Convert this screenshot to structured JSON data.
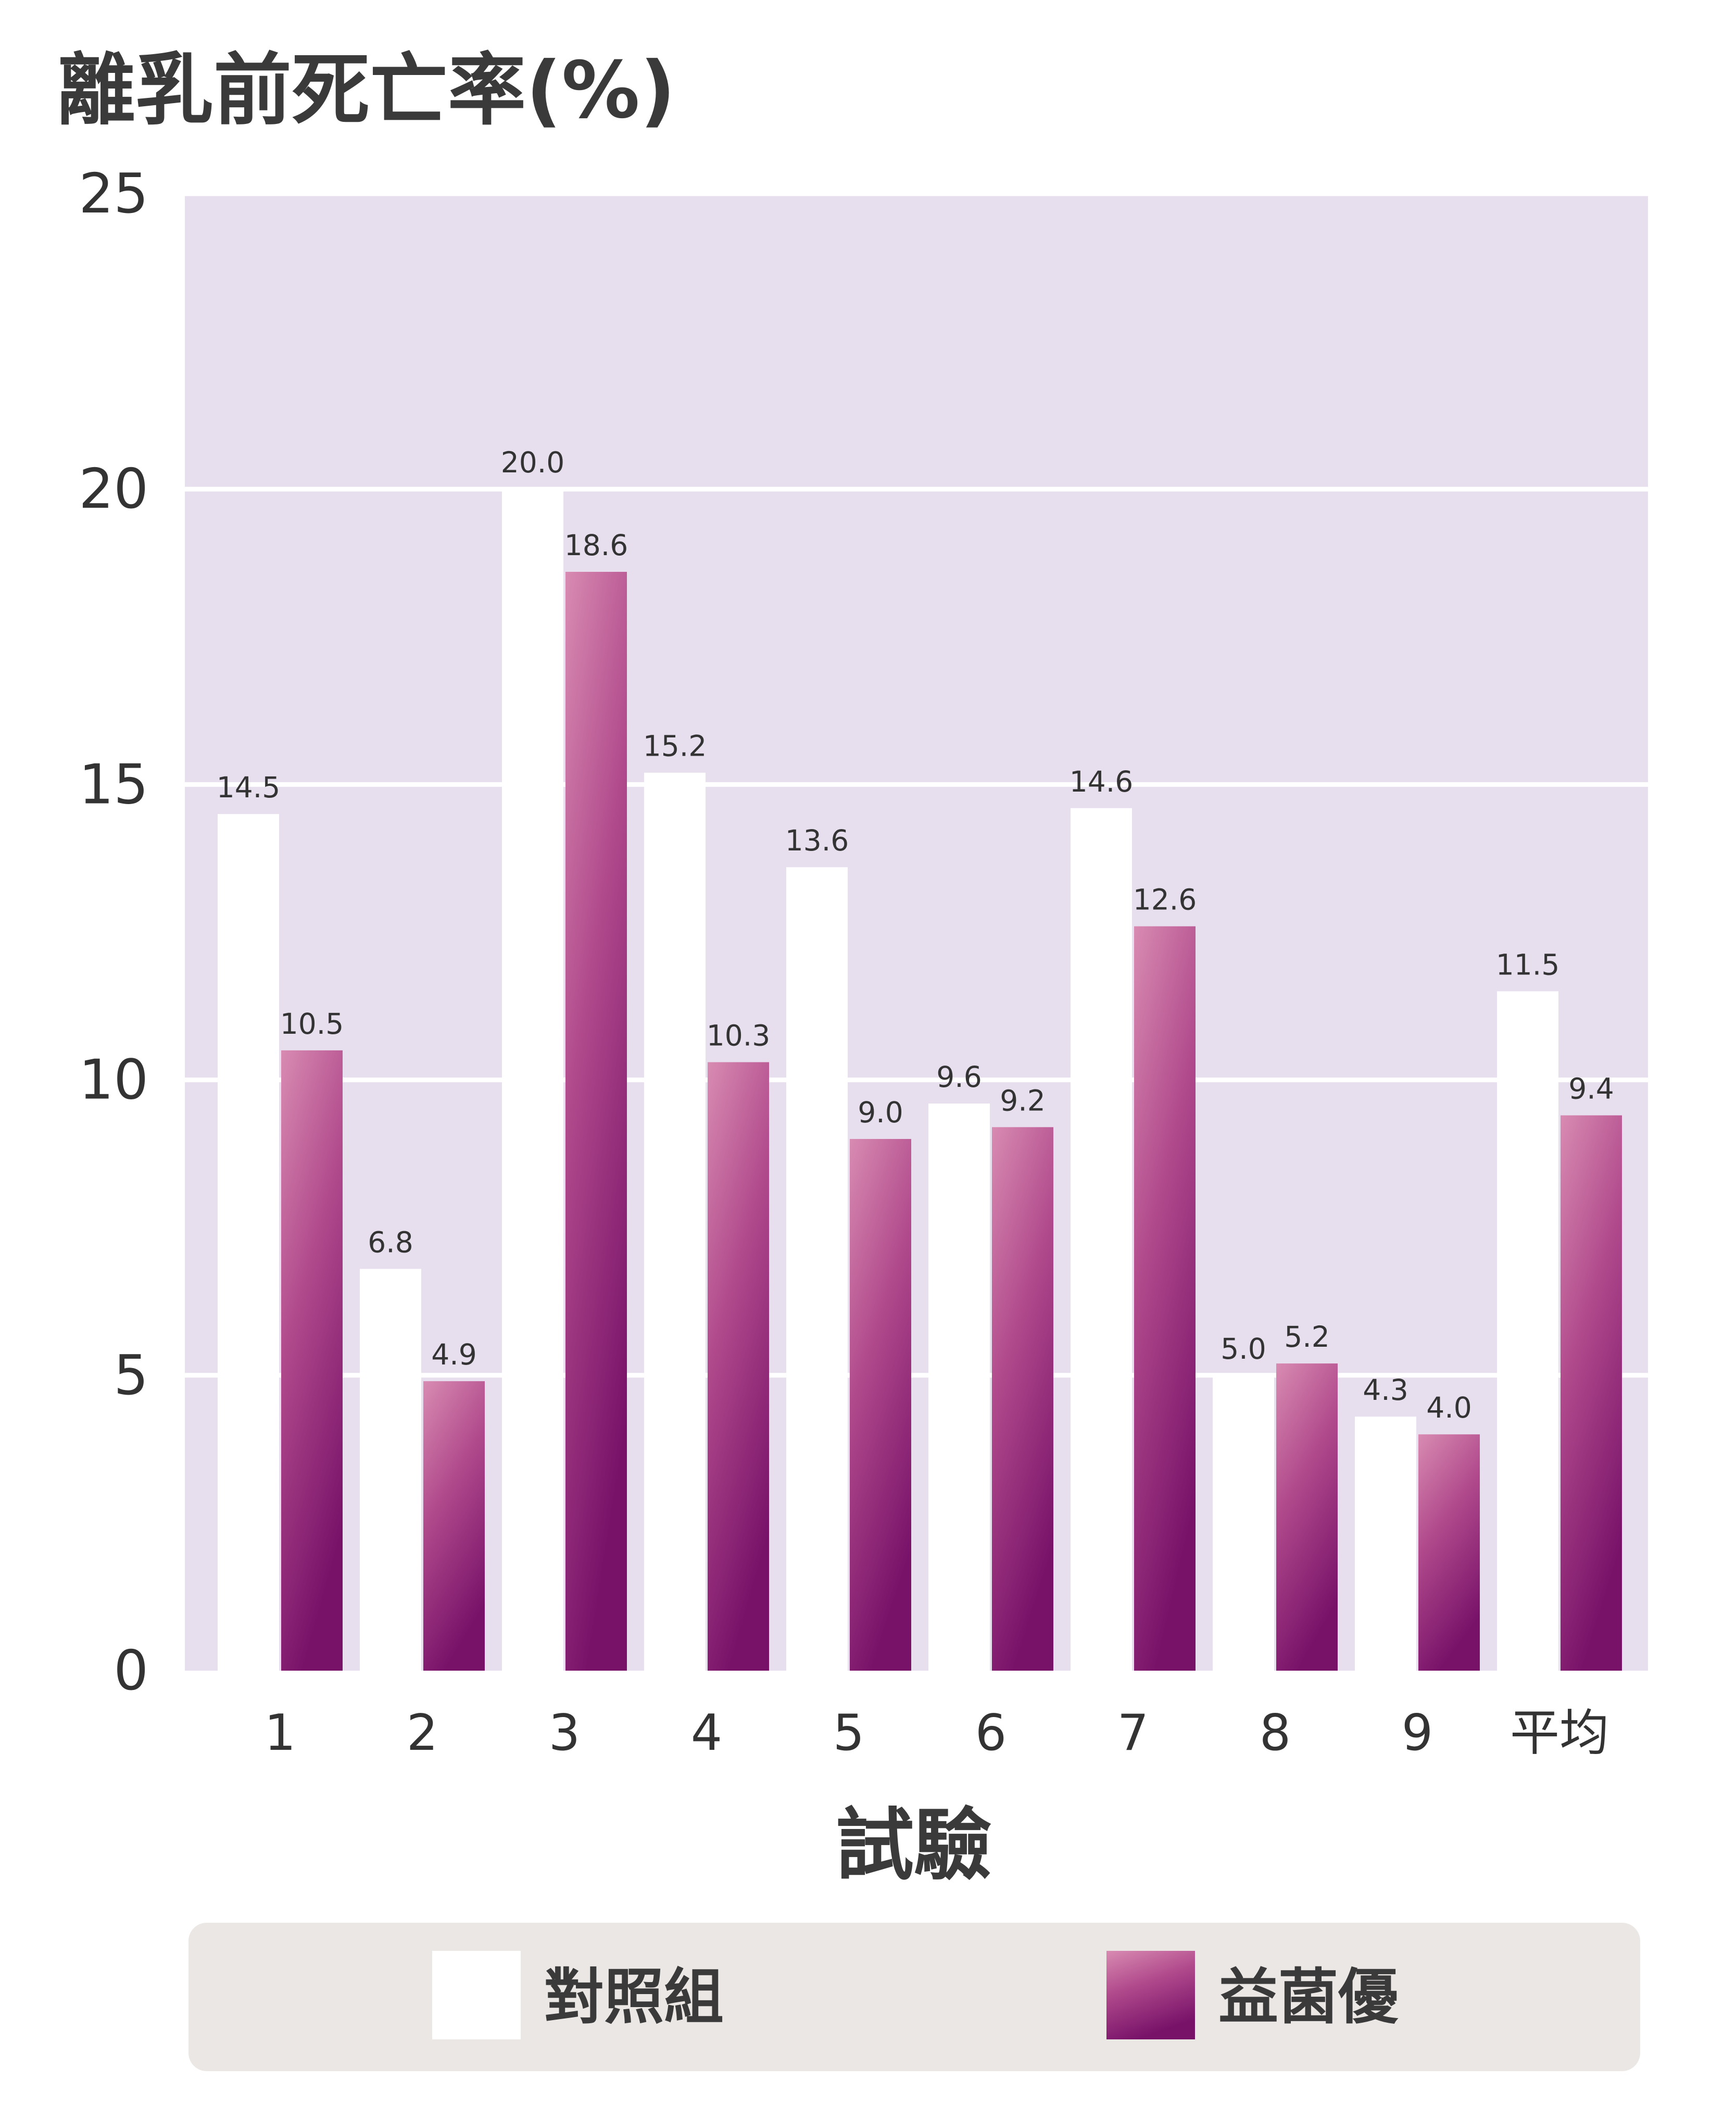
{
  "chart_data": {
    "type": "bar",
    "title": "",
    "ylabel": "離乳前死亡率(%)",
    "xlabel": "試驗",
    "categories": [
      "1",
      "2",
      "3",
      "4",
      "5",
      "6",
      "7",
      "8",
      "9",
      "平均"
    ],
    "series": [
      {
        "name": "對照組",
        "values": [
          14.5,
          6.8,
          20.0,
          15.2,
          13.6,
          9.6,
          14.6,
          5.0,
          4.3,
          11.5
        ],
        "labels": [
          "14.5",
          "6.8",
          "20.0",
          "15.2",
          "13.6",
          "9.6",
          "14.6",
          "5.0",
          "4.3",
          "11.5"
        ],
        "color": "#ffffff"
      },
      {
        "name": "益菌優",
        "values": [
          10.5,
          4.9,
          18.6,
          10.3,
          9.0,
          9.2,
          12.6,
          5.2,
          4.0,
          9.4
        ],
        "labels": [
          "10.5",
          "4.9",
          "18.6",
          "10.3",
          "9.0",
          "9.2",
          "12.6",
          "5.2",
          "4.0",
          "9.4"
        ],
        "color_top": "#d88bb2",
        "color_mid": "#b14a8c",
        "color_bottom": "#781269"
      }
    ],
    "ylim": [
      0,
      25
    ],
    "yticks": [
      0,
      5,
      10,
      15,
      20,
      25
    ],
    "grid": true,
    "legend": "bottom",
    "plot_background": "#e8dfee",
    "legend_background": "#ebe7e5"
  }
}
